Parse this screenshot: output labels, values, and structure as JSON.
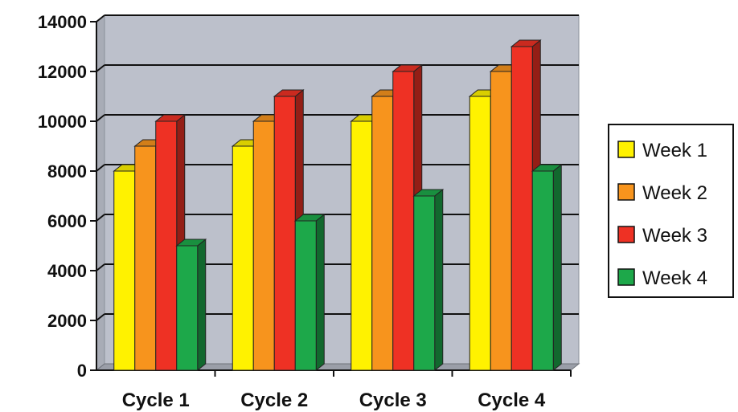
{
  "chart_data": {
    "type": "bar",
    "categories": [
      "Cycle 1",
      "Cycle 2",
      "Cycle 3",
      "Cycle 4"
    ],
    "series": [
      {
        "name": "Week 1",
        "values": [
          8000,
          9000,
          10000,
          11000
        ],
        "color": "#FFF200"
      },
      {
        "name": "Week 2",
        "values": [
          9000,
          10000,
          11000,
          12000
        ],
        "color": "#F7941D"
      },
      {
        "name": "Week 3",
        "values": [
          10000,
          11000,
          12000,
          13000
        ],
        "color": "#EE3124"
      },
      {
        "name": "Week 4",
        "values": [
          5000,
          6000,
          7000,
          8000
        ],
        "color": "#1DA84A"
      }
    ],
    "yticks": [
      "0",
      "2000",
      "4000",
      "6000",
      "8000",
      "10000",
      "12000",
      "14000"
    ],
    "ylim": [
      0,
      14000
    ],
    "title": "",
    "xlabel": "",
    "ylabel": "",
    "grid": true,
    "legend_position": "right",
    "style": "3d-clustered-column",
    "plot_background": "#BCC0CB"
  }
}
